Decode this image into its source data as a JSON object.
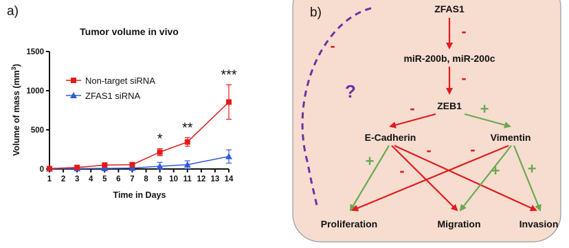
{
  "panel_a": {
    "label": "a)"
  },
  "panel_b": {
    "label": "b)"
  },
  "chart_data": {
    "type": "line",
    "title": "Tumor volume in vivo",
    "xlabel": "Time in Days",
    "ylabel": "Volume of mass (mm³)",
    "ylabel_main": "Volume of mass (mm",
    "ylabel_sup": "3",
    "ylabel_tail": ")",
    "xlim": [
      1,
      14
    ],
    "ylim": [
      0,
      1500
    ],
    "xticks": [
      1,
      2,
      3,
      4,
      5,
      6,
      7,
      8,
      9,
      10,
      11,
      12,
      13,
      14
    ],
    "yticks": [
      0,
      500,
      1000,
      1500
    ],
    "legend_position": "top-left",
    "grid": false,
    "series": [
      {
        "name": "Non-target siRNA",
        "color": "#e31a1c",
        "marker": "square",
        "x": [
          1,
          3,
          5,
          7,
          9,
          11,
          14
        ],
        "y": [
          5,
          20,
          50,
          55,
          215,
          345,
          855
        ],
        "err": [
          3,
          8,
          12,
          12,
          45,
          55,
          220
        ]
      },
      {
        "name": "ZFAS1 siRNA",
        "color": "#2f5bdc",
        "marker": "triangle",
        "x": [
          1,
          3,
          5,
          7,
          9,
          11,
          14
        ],
        "y": [
          3,
          5,
          8,
          12,
          35,
          55,
          160
        ],
        "err": [
          2,
          3,
          4,
          5,
          50,
          50,
          85
        ]
      }
    ],
    "annotations": [
      {
        "x": 9,
        "text": "*"
      },
      {
        "x": 11,
        "text": "**"
      },
      {
        "x": 14,
        "text": "***"
      }
    ]
  },
  "diagram": {
    "background": "#f6ddd0",
    "positive_color": "#6aa84f",
    "negative_color": "#e31a1c",
    "dashed_color": "#7030a0",
    "nodes": {
      "zfas1": "ZFAS1",
      "mir": "miR-200b, miR-200c",
      "zeb1": "ZEB1",
      "ecad": "E-Cadherin",
      "vim": "Vimentin",
      "prolif": "Proliferation",
      "migr": "Migration",
      "inv": "Invasion"
    },
    "question_mark": "?",
    "signs": {
      "minus": "-",
      "plus": "+"
    }
  }
}
